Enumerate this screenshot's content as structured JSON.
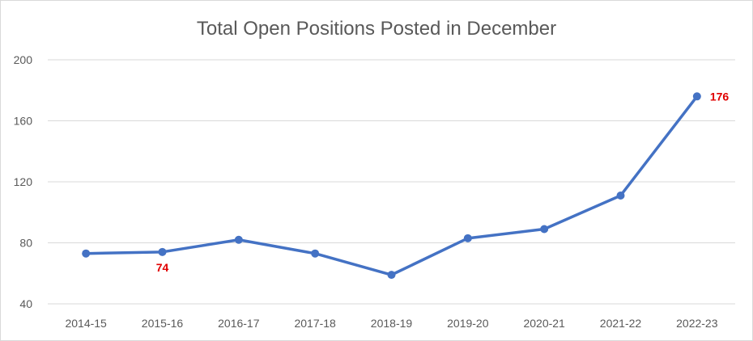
{
  "chart_data": {
    "type": "line",
    "title": "Total Open Positions Posted in December",
    "xlabel": "",
    "ylabel": "",
    "categories": [
      "2014-15",
      "2015-16",
      "2016-17",
      "2017-18",
      "2018-19",
      "2019-20",
      "2020-21",
      "2021-22",
      "2022-23"
    ],
    "series": [
      {
        "values": [
          73,
          74,
          82,
          73,
          59,
          83,
          89,
          111,
          176
        ]
      }
    ],
    "ylim": [
      40,
      200
    ],
    "yticks": [
      40,
      80,
      120,
      160,
      200
    ],
    "y_tick_labels": [
      "40",
      "80",
      "120",
      "160",
      "200"
    ],
    "data_labels": [
      {
        "category": "2015-16",
        "value": 74,
        "text": "74",
        "position": "below"
      },
      {
        "category": "2022-23",
        "value": 176,
        "text": "176",
        "position": "right"
      }
    ],
    "grid": true,
    "legend": "none",
    "colors": {
      "series": "#4472c4",
      "data_label": "#e00000",
      "grid": "#d9d9d9",
      "text": "#595959"
    }
  }
}
